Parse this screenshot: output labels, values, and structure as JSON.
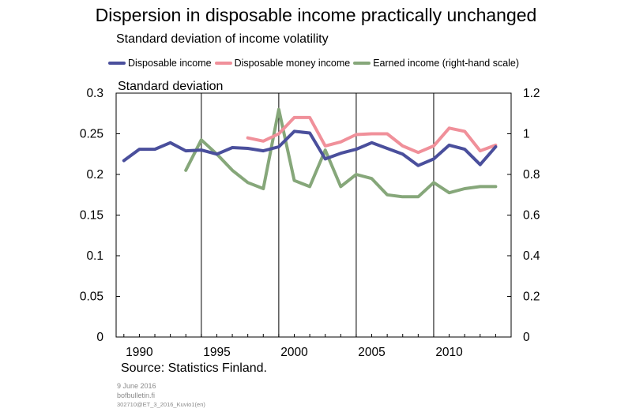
{
  "header": {
    "title": "Dispersion in disposable income practically unchanged",
    "subtitle": "Standard deviation of income volatility"
  },
  "footer": {
    "source": "Source: Statistics Finland.",
    "date": "9 June 2016",
    "site": "bofbulletin.fi",
    "code": "302710@ET_3_2016_Kuvio1(en)"
  },
  "chart_data": {
    "type": "line",
    "title": "Dispersion in disposable income practically unchanged",
    "subtitle": "Standard deviation of income volatility",
    "ylabel": "Standard deviation",
    "ylim": [
      0,
      0.3
    ],
    "yticks": [
      "0",
      "0.05",
      "0.1",
      "0.15",
      "0.2",
      "0.25",
      "0.3"
    ],
    "y2lim": [
      0,
      1.2
    ],
    "y2ticks": [
      "0",
      "0.2",
      "0.4",
      "0.6",
      "0.8",
      "1",
      "1.2"
    ],
    "xlim": [
      1988.5,
      2014.0
    ],
    "xticks": [
      1990,
      1995,
      2000,
      2005,
      2010
    ],
    "vgrid_years": [
      1994,
      1999,
      2004,
      2009
    ],
    "legend_position": "top",
    "series": [
      {
        "name": "Disposable income",
        "color": "#4a4f9c",
        "axis": "left",
        "x": [
          1989,
          1990,
          1991,
          1992,
          1993,
          1994,
          1995,
          1996,
          1997,
          1998,
          1999,
          2000,
          2001,
          2002,
          2003,
          2004,
          2005,
          2006,
          2007,
          2008,
          2009,
          2010,
          2011,
          2012,
          2013
        ],
        "values": [
          0.217,
          0.231,
          0.231,
          0.239,
          0.229,
          0.23,
          0.225,
          0.233,
          0.232,
          0.229,
          0.234,
          0.253,
          0.251,
          0.219,
          0.226,
          0.231,
          0.239,
          0.232,
          0.225,
          0.211,
          0.219,
          0.236,
          0.231,
          0.212,
          0.234
        ]
      },
      {
        "name": "Disposable money income",
        "color": "#f0909a",
        "axis": "left",
        "x": [
          1997,
          1998,
          1999,
          2000,
          2001,
          2002,
          2003,
          2004,
          2005,
          2006,
          2007,
          2008,
          2009,
          2010,
          2011,
          2012,
          2013
        ],
        "values": [
          0.245,
          0.241,
          0.25,
          0.27,
          0.27,
          0.235,
          0.24,
          0.249,
          0.25,
          0.25,
          0.235,
          0.227,
          0.235,
          0.257,
          0.253,
          0.229,
          0.236
        ]
      },
      {
        "name": "Earned income (right-hand scale)",
        "color": "#86a77a",
        "axis": "right",
        "x": [
          1993,
          1994,
          1995,
          1996,
          1997,
          1998,
          1999,
          2000,
          2001,
          2002,
          2003,
          2004,
          2005,
          2006,
          2007,
          2008,
          2009,
          2010,
          2011,
          2012,
          2013
        ],
        "values": [
          0.82,
          0.97,
          0.9,
          0.82,
          0.76,
          0.73,
          1.12,
          0.77,
          0.74,
          0.92,
          0.74,
          0.8,
          0.78,
          0.7,
          0.69,
          0.69,
          0.76,
          0.71,
          0.73,
          0.74,
          0.74
        ]
      }
    ]
  }
}
